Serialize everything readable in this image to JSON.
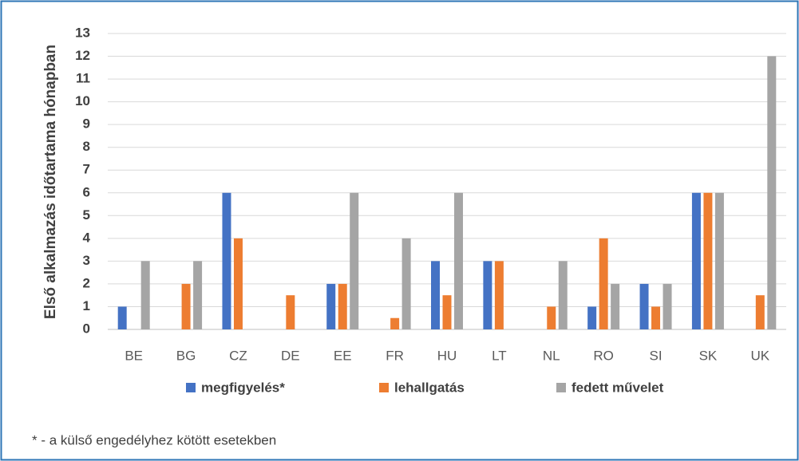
{
  "chart_data": {
    "type": "bar",
    "y_label": "Első alkalmazás időtartama hónapban",
    "categories": [
      "BE",
      "BG",
      "CZ",
      "DE",
      "EE",
      "FR",
      "HU",
      "LT",
      "NL",
      "RO",
      "SI",
      "SK",
      "UK"
    ],
    "series": [
      {
        "name": "megfigyelés*",
        "color": "#4472c4",
        "values": [
          1,
          0,
          6,
          0,
          2,
          0,
          3,
          3,
          0,
          1,
          2,
          6,
          0
        ]
      },
      {
        "name": "lehallgatás",
        "color": "#ed7d31",
        "values": [
          0,
          2,
          4,
          1.5,
          2,
          0.5,
          1.5,
          3,
          1,
          4,
          1,
          6,
          1.5
        ]
      },
      {
        "name": "fedett művelet",
        "color": "#a5a5a5",
        "values": [
          3,
          3,
          0,
          0,
          6,
          4,
          6,
          0,
          3,
          2,
          2,
          6,
          12
        ]
      }
    ],
    "ylim": [
      0,
      13
    ],
    "yticks": [
      0,
      1,
      2,
      3,
      4,
      5,
      6,
      7,
      8,
      9,
      10,
      11,
      12,
      13
    ],
    "grid": true,
    "legend": "bottom"
  },
  "footnote": "* - a külső engedélyhez kötött esetekben"
}
